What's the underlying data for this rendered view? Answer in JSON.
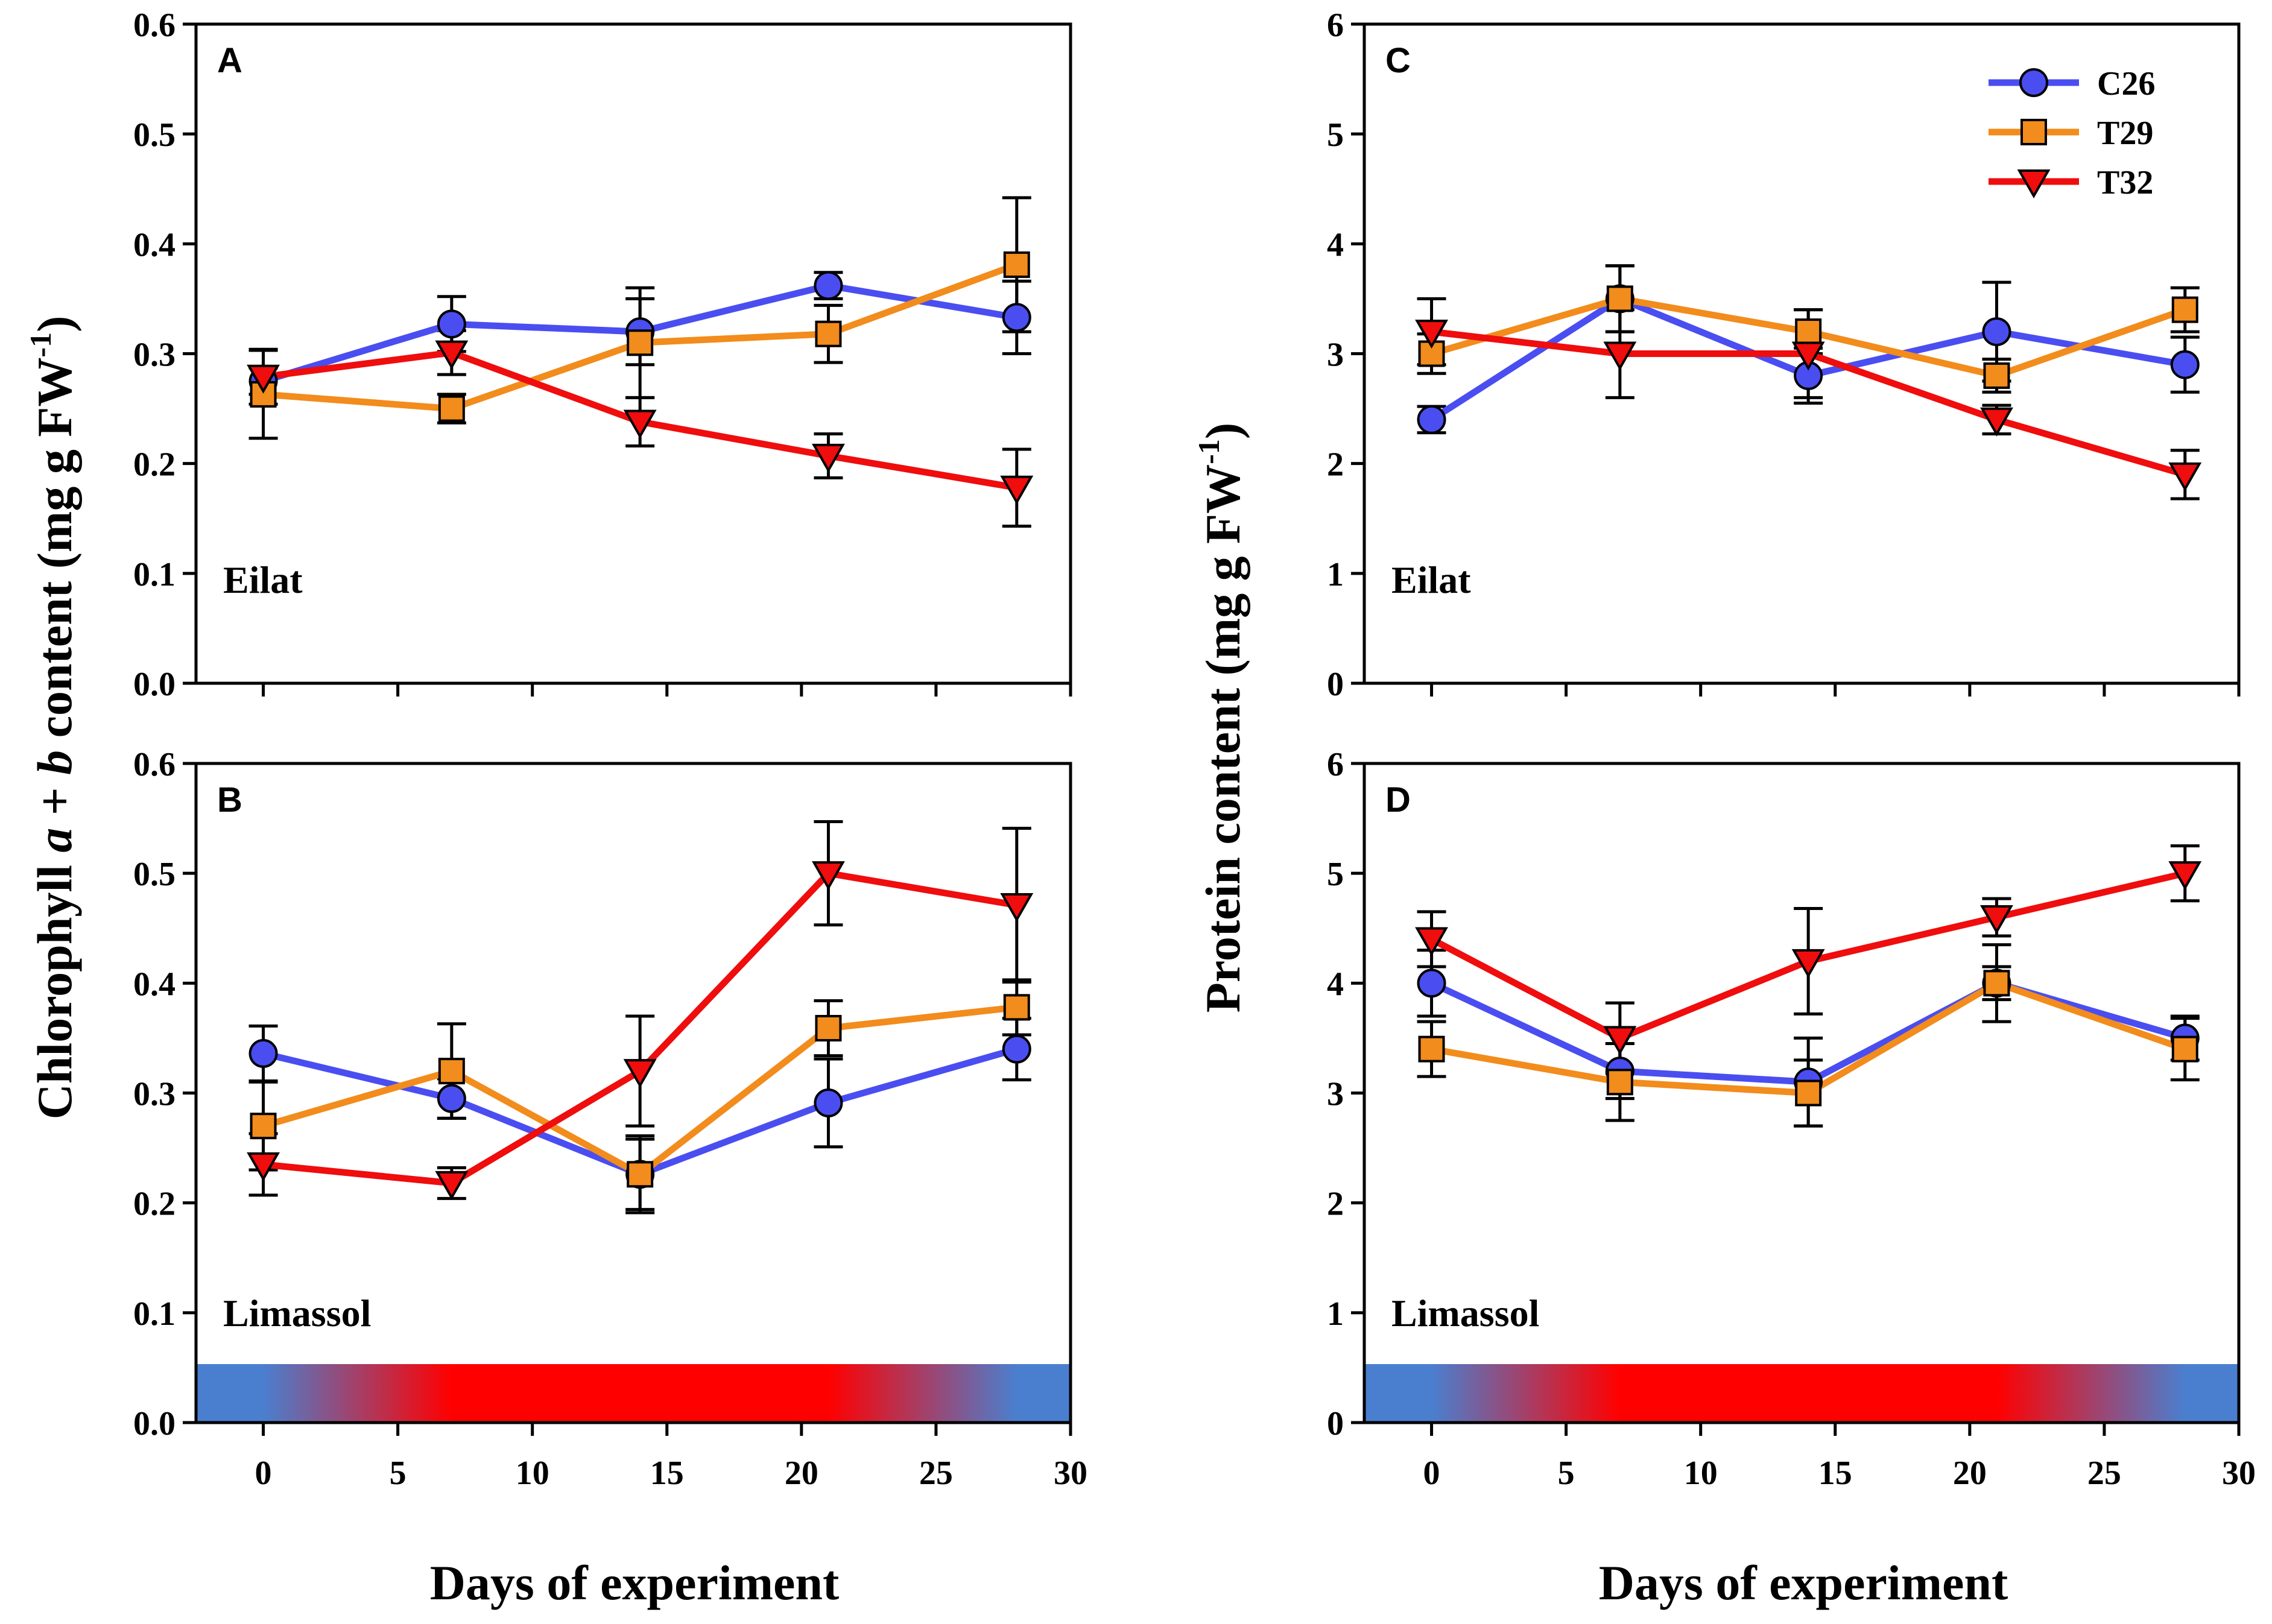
{
  "chart_data": {
    "type": "line",
    "x_label": "Days of experiment",
    "colors": {
      "C26": "#4a4ef0",
      "T29": "#f28c1c",
      "T32": "#ef0d0d",
      "marker_stroke": "#000000",
      "heat_hot": "#ff0000",
      "heat_cool": "#4a7fcf"
    },
    "legend": [
      {
        "name": "C26",
        "marker": "circle",
        "color": "#4a4ef0"
      },
      {
        "name": "T29",
        "marker": "square",
        "color": "#f28c1c"
      },
      {
        "name": "T32",
        "marker": "triangle-down",
        "color": "#ef0d0d"
      }
    ],
    "heat_bar": {
      "cool_days": [
        0,
        28
      ],
      "hot_days": [
        7,
        21
      ]
    },
    "y_titles": {
      "left": {
        "prefix": "Chlorophyll ",
        "a": "a",
        "plus": " + ",
        "b": "b",
        "unit": " content (mg g FW",
        "sup": "-1",
        "close": ")"
      },
      "right": {
        "prefix": "Protein content (mg g FW",
        "sup": "-1",
        "close": ")"
      }
    },
    "panels": [
      {
        "id": "A",
        "letter": "A",
        "site": "Eilat",
        "xlim": [
          -2.5,
          30
        ],
        "ylim": [
          0,
          0.6
        ],
        "xticks": [
          "0",
          "5",
          "10",
          "15",
          "20",
          "25",
          "30"
        ],
        "yticks": [
          "0.0",
          "0.1",
          "0.2",
          "0.3",
          "0.4",
          "0.5",
          "0.6"
        ],
        "show_heat_bar": false,
        "show_legend": false,
        "show_x_labels": false,
        "x": [
          0,
          7,
          14,
          21,
          28
        ],
        "series": [
          {
            "name": "C26",
            "values": [
              0.275,
              0.327,
              0.32,
              0.362,
              0.333
            ],
            "err": [
              0.012,
              0.025,
              0.03,
              0.012,
              0.033
            ]
          },
          {
            "name": "T29",
            "values": [
              0.263,
              0.25,
              0.31,
              0.318,
              0.381
            ],
            "err": [
              0.04,
              0.013,
              0.05,
              0.026,
              0.061
            ]
          },
          {
            "name": "T32",
            "values": [
              0.279,
              0.301,
              0.238,
              0.207,
              0.178
            ],
            "err": [
              0.025,
              0.02,
              0.022,
              0.02,
              0.035
            ]
          }
        ]
      },
      {
        "id": "B",
        "letter": "B",
        "site": "Limassol",
        "xlim": [
          -2.5,
          30
        ],
        "ylim": [
          0,
          0.6
        ],
        "xticks": [
          "0",
          "5",
          "10",
          "15",
          "20",
          "25",
          "30"
        ],
        "yticks": [
          "0.0",
          "0.1",
          "0.2",
          "0.3",
          "0.4",
          "0.5",
          "0.6"
        ],
        "show_heat_bar": true,
        "show_legend": false,
        "show_x_labels": true,
        "x": [
          0,
          7,
          14,
          21,
          28
        ],
        "series": [
          {
            "name": "C26",
            "values": [
              0.336,
              0.295,
              0.226,
              0.291,
              0.34
            ],
            "err": [
              0.025,
              0.018,
              0.035,
              0.04,
              0.028
            ]
          },
          {
            "name": "T29",
            "values": [
              0.27,
              0.32,
              0.226,
              0.359,
              0.378
            ],
            "err": [
              0.04,
              0.043,
              0.032,
              0.025,
              0.025
            ]
          },
          {
            "name": "T32",
            "values": [
              0.235,
              0.218,
              0.32,
              0.5,
              0.471
            ],
            "err": [
              0.028,
              0.014,
              0.05,
              0.047,
              0.07
            ]
          }
        ]
      },
      {
        "id": "C",
        "letter": "C",
        "site": "Eilat",
        "xlim": [
          -2.5,
          30
        ],
        "ylim": [
          0,
          6
        ],
        "xticks": [
          "0",
          "5",
          "10",
          "15",
          "20",
          "25",
          "30"
        ],
        "yticks": [
          "0",
          "1",
          "2",
          "3",
          "4",
          "5",
          "6"
        ],
        "show_heat_bar": false,
        "show_legend": true,
        "show_x_labels": false,
        "x": [
          0,
          7,
          14,
          21,
          28
        ],
        "series": [
          {
            "name": "C26",
            "values": [
              2.4,
              3.5,
              2.8,
              3.2,
              2.9
            ],
            "err": [
              0.12,
              0.3,
              0.25,
              0.45,
              0.25
            ]
          },
          {
            "name": "T29",
            "values": [
              3.0,
              3.5,
              3.2,
              2.8,
              3.4
            ],
            "err": [
              0.18,
              0.3,
              0.2,
              0.15,
              0.2
            ]
          },
          {
            "name": "T32",
            "values": [
              3.2,
              3.0,
              3.0,
              2.4,
              1.9
            ],
            "err": [
              0.3,
              0.4,
              0.4,
              0.13,
              0.22
            ]
          }
        ]
      },
      {
        "id": "D",
        "letter": "D",
        "site": "Limassol",
        "xlim": [
          -2.5,
          30
        ],
        "ylim": [
          0,
          6
        ],
        "xticks": [
          "0",
          "5",
          "10",
          "15",
          "20",
          "25",
          "30"
        ],
        "yticks": [
          "0",
          "1",
          "2",
          "3",
          "4",
          "5",
          "6"
        ],
        "show_heat_bar": true,
        "show_legend": false,
        "show_x_labels": true,
        "x": [
          0,
          7,
          14,
          21,
          28
        ],
        "series": [
          {
            "name": "C26",
            "values": [
              4.0,
              3.2,
              3.1,
              4.0,
              3.5
            ],
            "err": [
              0.3,
              0.25,
              0.4,
              0.15,
              0.2
            ]
          },
          {
            "name": "T29",
            "values": [
              3.4,
              3.1,
              3.0,
              4.0,
              3.4
            ],
            "err": [
              0.25,
              0.35,
              0.3,
              0.35,
              0.28
            ]
          },
          {
            "name": "T32",
            "values": [
              4.4,
              3.5,
              4.2,
              4.6,
              5.0
            ],
            "err": [
              0.25,
              0.32,
              0.48,
              0.17,
              0.25
            ]
          }
        ]
      }
    ]
  }
}
